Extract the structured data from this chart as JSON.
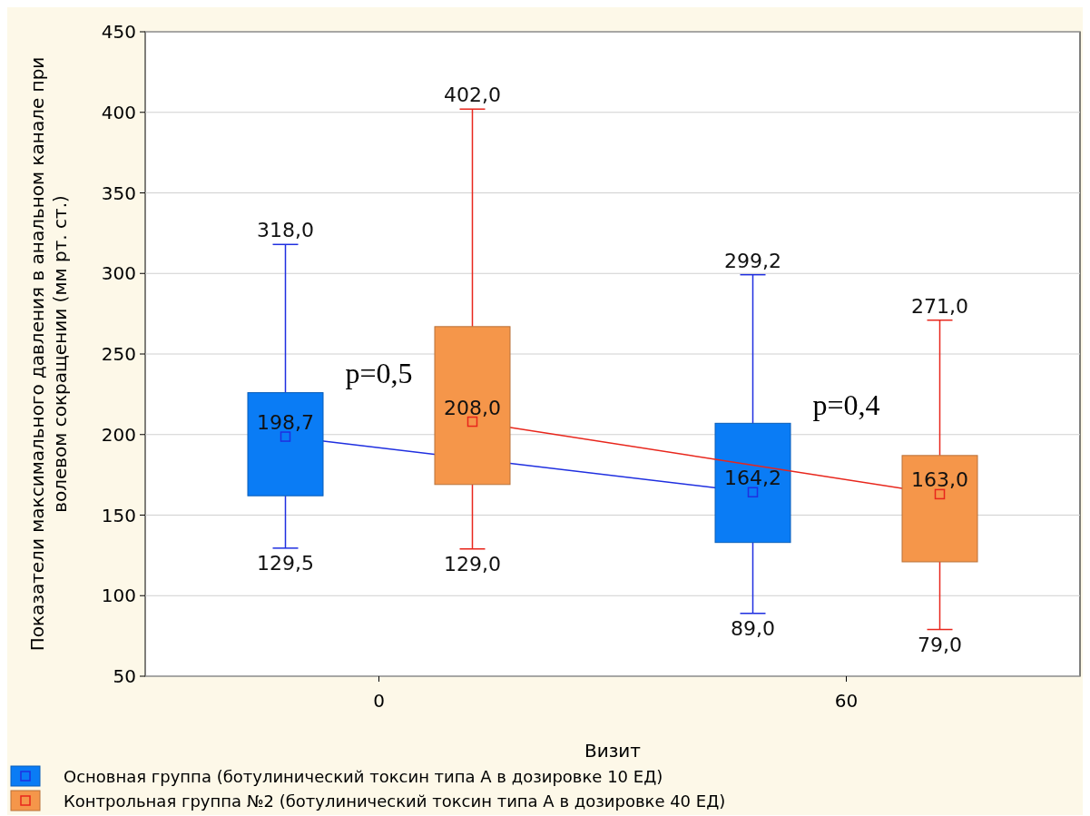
{
  "chart_data": {
    "type": "box",
    "categories": [
      "0",
      "60"
    ],
    "xlabel": "Визит",
    "ylabel": "Показатели максимального давления в анальном канале при\nволевом сокращении (мм рт. ст.)",
    "ylim": [
      50,
      450
    ],
    "yticks": [
      50,
      100,
      150,
      200,
      250,
      300,
      350,
      400,
      450
    ],
    "grid": "y",
    "legend": "bottom",
    "marker": "square",
    "series": [
      {
        "name": "Основная группа (ботулинический токсин типа А в дозировке 10 ЕД)",
        "color": "#0a7cf5",
        "value_labels": [
          [
            "318,0",
            "198,7",
            "129,5"
          ],
          [
            "299,2",
            "164,2",
            "89,0"
          ]
        ],
        "boxes": [
          {
            "low": 129.5,
            "q1": 162,
            "median": 198.7,
            "q3": 226,
            "high": 318.0
          },
          {
            "low": 89.0,
            "q1": 133,
            "median": 164.2,
            "q3": 207,
            "high": 299.2
          }
        ]
      },
      {
        "name": "Контрольная группа №2 (ботулинический токсин типа А в дозировке 40 ЕД)",
        "color": "#f5964a",
        "value_labels": [
          [
            "402,0",
            "208,0",
            "129,0"
          ],
          [
            "271,0",
            "163,0",
            "79,0"
          ]
        ],
        "boxes": [
          {
            "low": 129.0,
            "q1": 169,
            "median": 208.0,
            "q3": 267,
            "high": 402.0
          },
          {
            "low": 79.0,
            "q1": 121,
            "median": 163.0,
            "q3": 187,
            "high": 271.0
          }
        ]
      }
    ],
    "annotations": [
      "p=0,5",
      "p=0,4"
    ]
  }
}
